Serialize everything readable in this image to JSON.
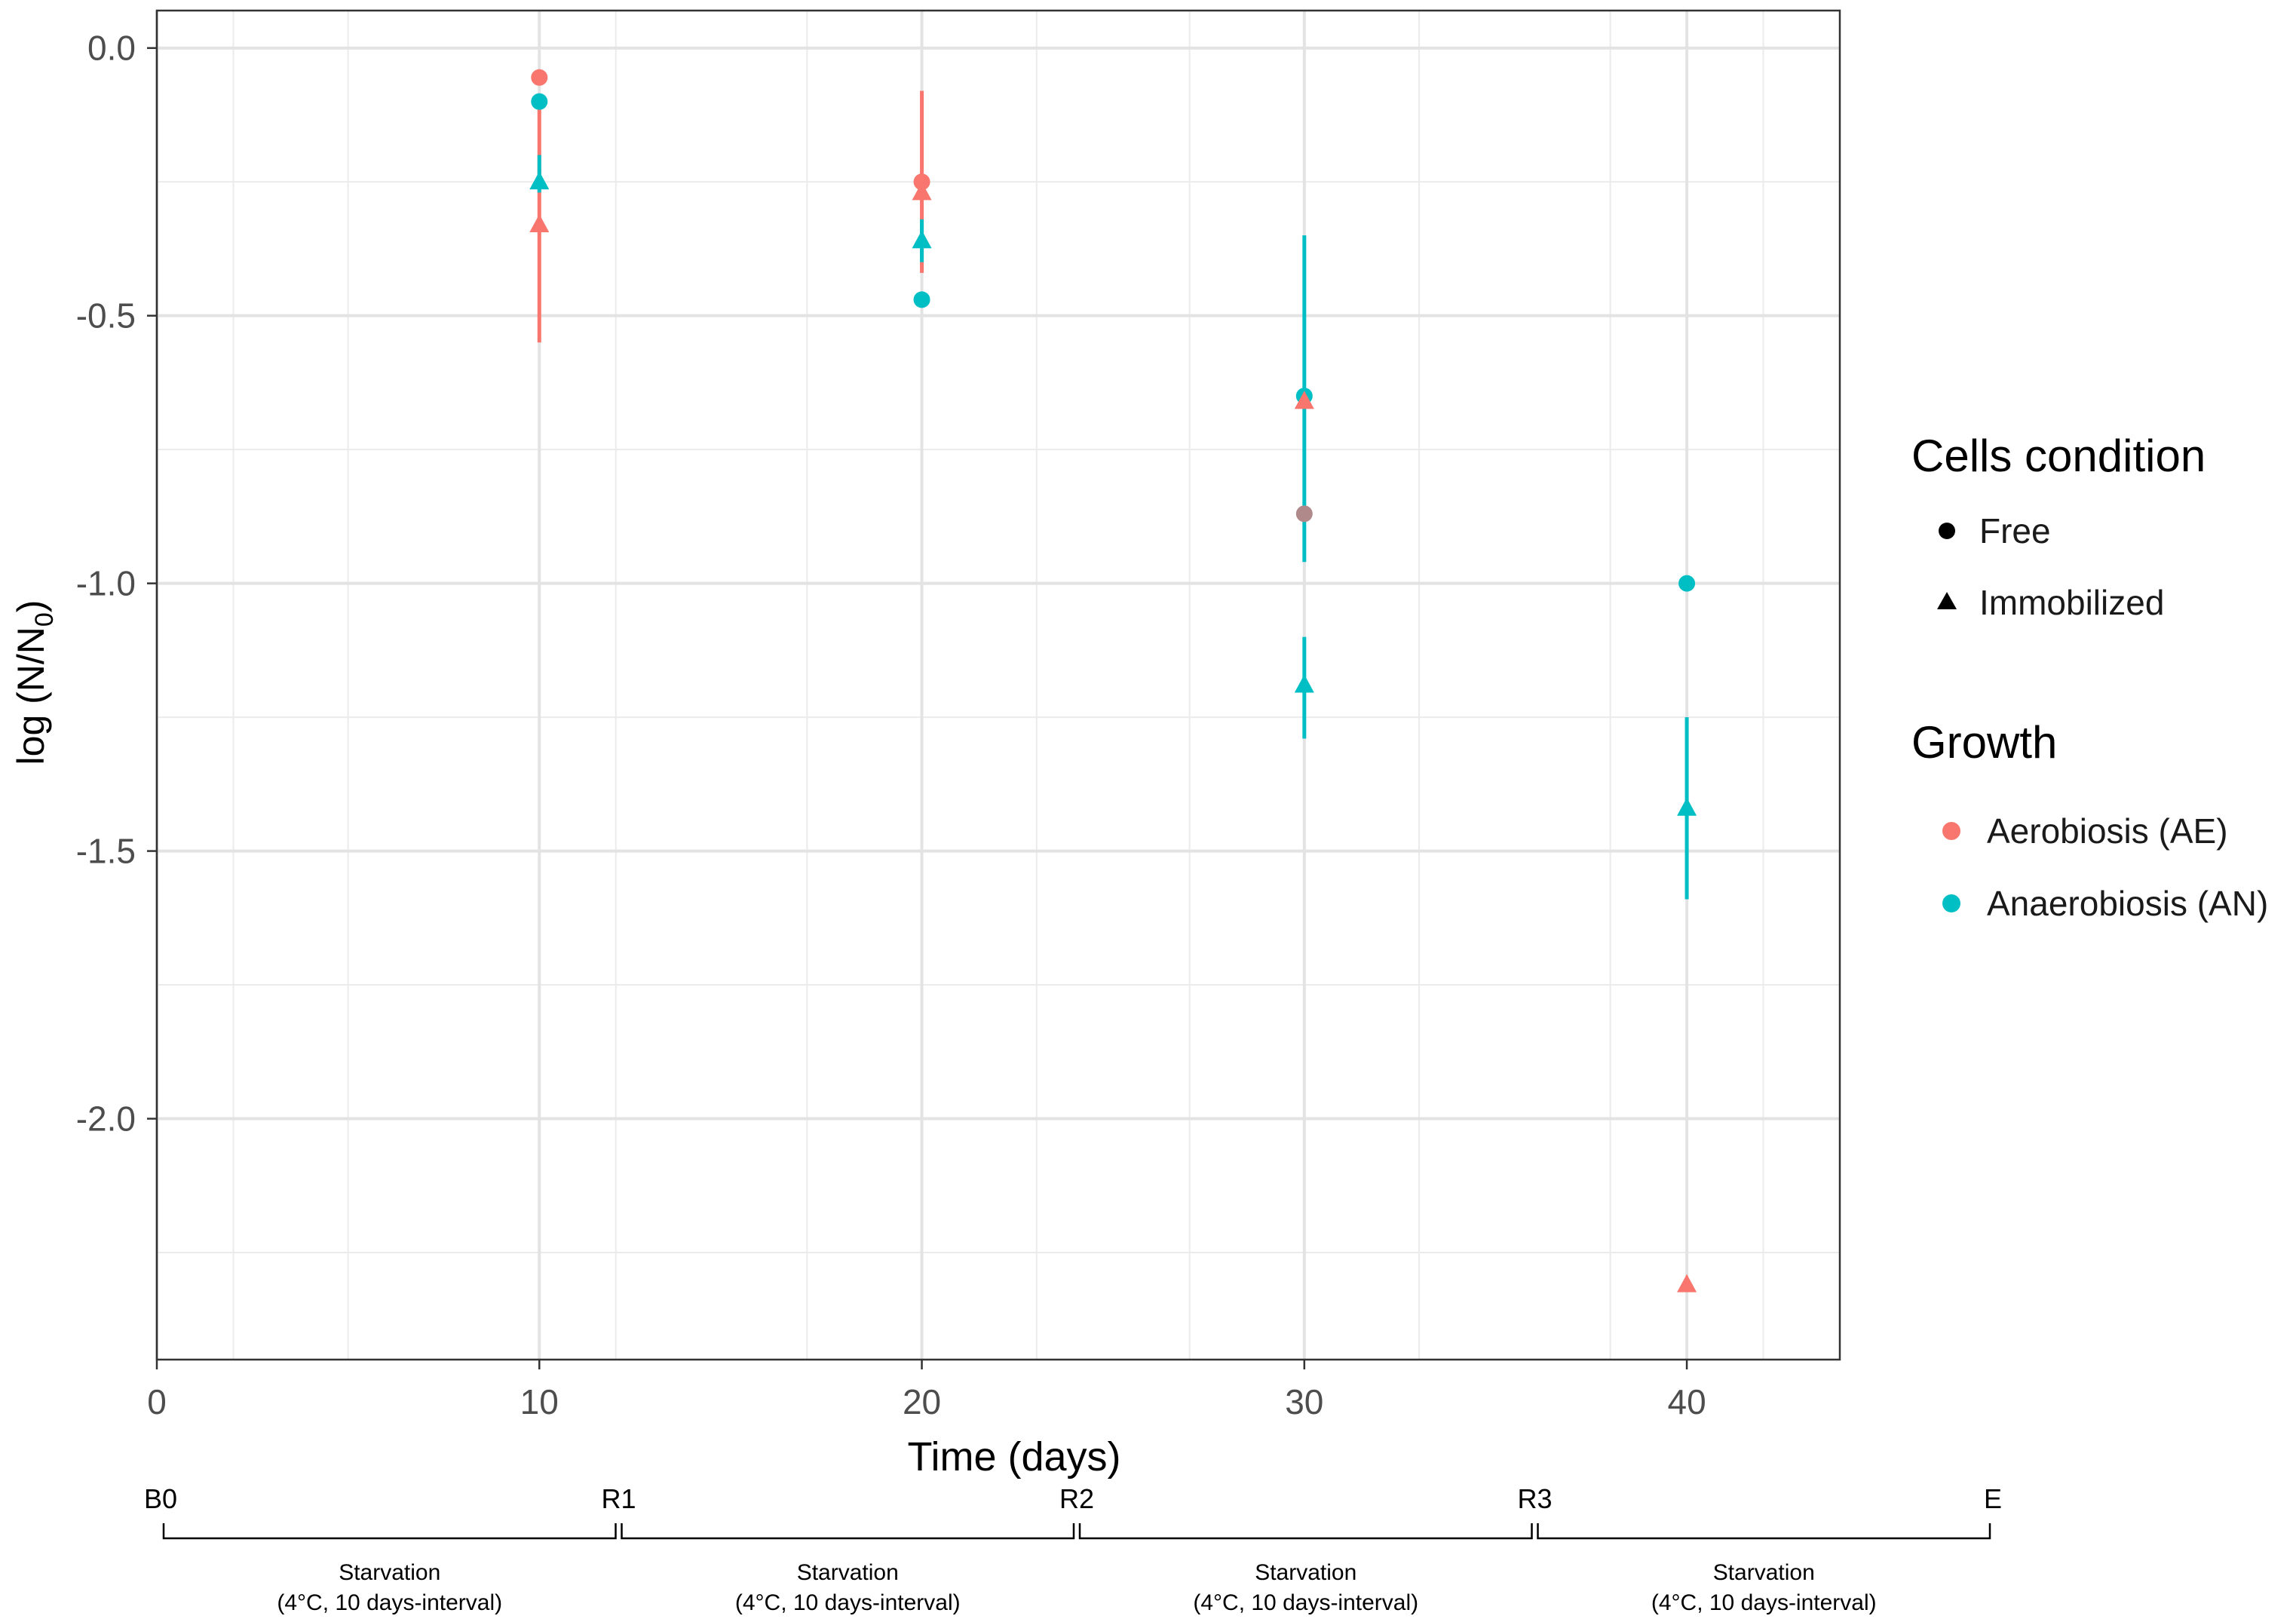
{
  "chart_data": {
    "type": "scatter",
    "xlabel": "Time (days)",
    "ylabel_main": "log (N/N",
    "ylabel_sub": "0",
    "ylabel_close": ")",
    "xlim": [
      0,
      44
    ],
    "ylim": [
      -2.45,
      0.07
    ],
    "x_ticks": [
      {
        "value": 0,
        "label": "0"
      },
      {
        "value": 10,
        "label": "10"
      },
      {
        "value": 20,
        "label": "20"
      },
      {
        "value": 30,
        "label": "30"
      },
      {
        "value": 40,
        "label": "40"
      }
    ],
    "y_ticks": [
      {
        "value": 0,
        "label": "0.0"
      },
      {
        "value": -0.5,
        "label": "-0.5"
      },
      {
        "value": -1,
        "label": "-1.0"
      },
      {
        "value": -1.5,
        "label": "-1.5"
      },
      {
        "value": -2,
        "label": "-2.0"
      }
    ],
    "minor_x_grid": [
      2,
      5,
      12,
      17,
      23,
      27,
      33,
      38,
      42
    ],
    "minor_y_grid": [
      -0.25,
      -0.75,
      -1.25,
      -1.75,
      -2.25
    ],
    "colors": {
      "AE": "#F8766D",
      "AN": "#00BFC4",
      "overlap": "#B0898A"
    },
    "series": [
      {
        "name": "Free AE",
        "growth": "AE",
        "condition": "Free",
        "shape": "circle",
        "points": [
          {
            "x": 10,
            "y": -0.055
          },
          {
            "x": 20,
            "y": -0.25
          },
          {
            "x": 30,
            "y": -0.87,
            "color_key": "overlap"
          }
        ]
      },
      {
        "name": "Free AN",
        "growth": "AN",
        "condition": "Free",
        "shape": "circle",
        "points": [
          {
            "x": 10,
            "y": -0.1
          },
          {
            "x": 20,
            "y": -0.47
          },
          {
            "x": 30,
            "y": -0.65
          },
          {
            "x": 40,
            "y": -1.0
          }
        ]
      },
      {
        "name": "Immobilized AE",
        "growth": "AE",
        "condition": "Immobilized",
        "shape": "triangle",
        "points": [
          {
            "x": 10,
            "y": -0.33,
            "ymin": -0.55,
            "ymax": -0.1
          },
          {
            "x": 20,
            "y": -0.27,
            "ymin": -0.42,
            "ymax": -0.08
          },
          {
            "x": 30,
            "y": -0.66
          },
          {
            "x": 40,
            "y": -2.31
          }
        ]
      },
      {
        "name": "Immobilized AN",
        "growth": "AN",
        "condition": "Immobilized",
        "shape": "triangle",
        "points": [
          {
            "x": 10,
            "y": -0.25,
            "ymin": -0.27,
            "ymax": -0.2
          },
          {
            "x": 20,
            "y": -0.36,
            "ymin": -0.4,
            "ymax": -0.32
          },
          {
            "x": 30,
            "y": -1.19,
            "ymin": -1.29,
            "ymax": -1.1
          },
          {
            "x": 40,
            "y": -1.42,
            "ymin": -1.59,
            "ymax": -1.25
          }
        ]
      },
      {
        "name": "Free AN error bar",
        "growth": "AN",
        "condition": "Free",
        "shape": "none",
        "points": [
          {
            "x": 30,
            "y": -0.65,
            "ymin": -0.96,
            "ymax": -0.35
          }
        ]
      }
    ],
    "legend": {
      "position": "right",
      "cells_title": "Cells condition",
      "cells_items": [
        {
          "label": "Free",
          "shape": "circle"
        },
        {
          "label": "Immobilized",
          "shape": "triangle"
        }
      ],
      "growth_title": "Growth",
      "growth_items": [
        {
          "label": "Aerobiosis (AE)",
          "key": "AE"
        },
        {
          "label": "Anaerobiosis (AN)",
          "key": "AN"
        }
      ]
    },
    "timeline": {
      "markers": [
        {
          "x": 0,
          "label": "B0"
        },
        {
          "x": 10,
          "label": "R1"
        },
        {
          "x": 20,
          "label": "R2"
        },
        {
          "x": 30,
          "label": "R3"
        },
        {
          "x": 40,
          "label": "E"
        }
      ],
      "intervals": [
        {
          "from": 0,
          "to": 10,
          "line1": "Starvation",
          "line2": "(4°C, 10 days-interval)"
        },
        {
          "from": 10,
          "to": 20,
          "line1": "Starvation",
          "line2": "(4°C, 10 days-interval)"
        },
        {
          "from": 20,
          "to": 30,
          "line1": "Starvation",
          "line2": "(4°C, 10 days-interval)"
        },
        {
          "from": 30,
          "to": 40,
          "line1": "Starvation",
          "line2": "(4°C, 10 days-interval)"
        }
      ]
    }
  }
}
